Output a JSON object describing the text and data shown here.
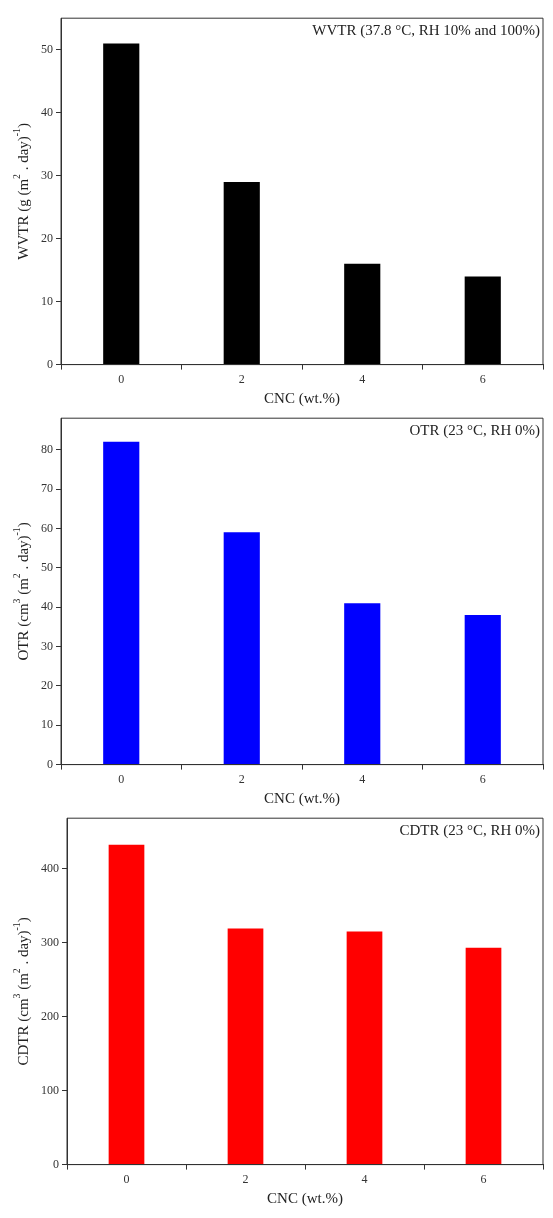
{
  "chart_data": [
    {
      "type": "bar",
      "categories": [
        "0",
        "2",
        "4",
        "6"
      ],
      "values": [
        51,
        29,
        16,
        14
      ],
      "color": "#000000",
      "xlabel": "CNC (wt.%)",
      "ylabel": "WVTR (g (m$^{2}$ . day)$^{-1}$)",
      "ylim": [
        0,
        55
      ],
      "yticks": [
        0,
        10,
        20,
        30,
        40,
        50
      ],
      "annotations": [
        "WVTR (37.8 °C, RH 10% and 100%)"
      ]
    },
    {
      "type": "bar",
      "categories": [
        "0",
        "2",
        "4",
        "6"
      ],
      "values": [
        82,
        59,
        41,
        38
      ],
      "color": "#0000ff",
      "xlabel": "CNC (wt.%)",
      "ylabel": "OTR (cm$^{3}$ (m$^{2}$ . day)$^{-1}$)",
      "ylim": [
        0,
        88
      ],
      "yticks": [
        0,
        10,
        20,
        30,
        40,
        50,
        60,
        70,
        80
      ],
      "annotations": [
        "OTR (23 °C, RH 0%)"
      ]
    },
    {
      "type": "bar",
      "categories": [
        "0",
        "2",
        "4",
        "6"
      ],
      "values": [
        432,
        319,
        315,
        293
      ],
      "color": "#ff0000",
      "xlabel": "CNC (wt.%)",
      "ylabel": "CDTR (cm$^{3}$ (m$^{2}$ . day)$^{-1}$)",
      "ylim": [
        0,
        468
      ],
      "yticks": [
        0,
        100,
        200,
        300,
        400
      ],
      "annotations": [
        "CDTR (23 °C, RH 0%)"
      ]
    }
  ]
}
